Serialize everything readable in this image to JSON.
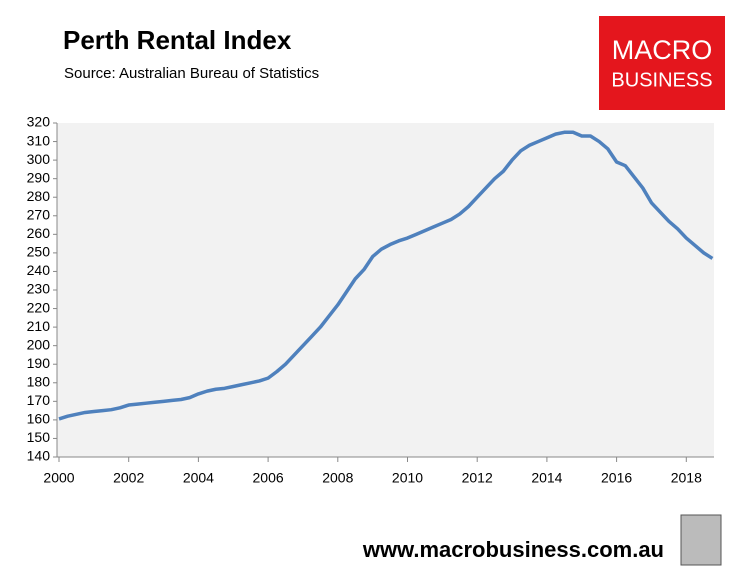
{
  "chart_data": {
    "type": "line",
    "title": "Perth Rental Index",
    "subtitle": "Source: Australian Bureau of Statistics",
    "x": [
      2000,
      2000.25,
      2000.5,
      2000.75,
      2001,
      2001.25,
      2001.5,
      2001.75,
      2002,
      2002.25,
      2002.5,
      2002.75,
      2003,
      2003.25,
      2003.5,
      2003.75,
      2004,
      2004.25,
      2004.5,
      2004.75,
      2005,
      2005.25,
      2005.5,
      2005.75,
      2006,
      2006.25,
      2006.5,
      2006.75,
      2007,
      2007.25,
      2007.5,
      2007.75,
      2008,
      2008.25,
      2008.5,
      2008.75,
      2009,
      2009.25,
      2009.5,
      2009.75,
      2010,
      2010.25,
      2010.5,
      2010.75,
      2011,
      2011.25,
      2011.5,
      2011.75,
      2012,
      2012.25,
      2012.5,
      2012.75,
      2013,
      2013.25,
      2013.5,
      2013.75,
      2014,
      2014.25,
      2014.5,
      2014.75,
      2015,
      2015.25,
      2015.5,
      2015.75,
      2016,
      2016.25,
      2016.5,
      2016.75,
      2017,
      2017.25,
      2017.5,
      2017.75,
      2018,
      2018.25,
      2018.5,
      2018.75
    ],
    "series": [
      {
        "color": "#4f81bd",
        "values": [
          160.5,
          162,
          163,
          164,
          164.5,
          165,
          165.5,
          166.5,
          168,
          168.5,
          169,
          169.5,
          170,
          170.5,
          171,
          172,
          174,
          175.5,
          176.5,
          177,
          178,
          179,
          180,
          181,
          182.5,
          186,
          190,
          195,
          200,
          205,
          210,
          216,
          222,
          229,
          236,
          241,
          248,
          252,
          254.5,
          256.5,
          258,
          260,
          262,
          264,
          266,
          268,
          271,
          275,
          280,
          285,
          290,
          294,
          300,
          305,
          308,
          310,
          312,
          314,
          315,
          315,
          313,
          313,
          310,
          306,
          299,
          297,
          291,
          285,
          277,
          272,
          267,
          263,
          258,
          254,
          250,
          247
        ]
      }
    ],
    "xlim": [
      2000,
      2018.75
    ],
    "xticks": [
      2000,
      2002,
      2004,
      2006,
      2008,
      2010,
      2012,
      2014,
      2016,
      2018
    ],
    "ylim": [
      140,
      320
    ],
    "yticks": [
      140,
      150,
      160,
      170,
      180,
      190,
      200,
      210,
      220,
      230,
      240,
      250,
      260,
      270,
      280,
      290,
      300,
      310,
      320
    ]
  },
  "logo": {
    "line1": "MACRO",
    "line2": "BUSINESS"
  },
  "footer": "www.macrobusiness.com.au"
}
